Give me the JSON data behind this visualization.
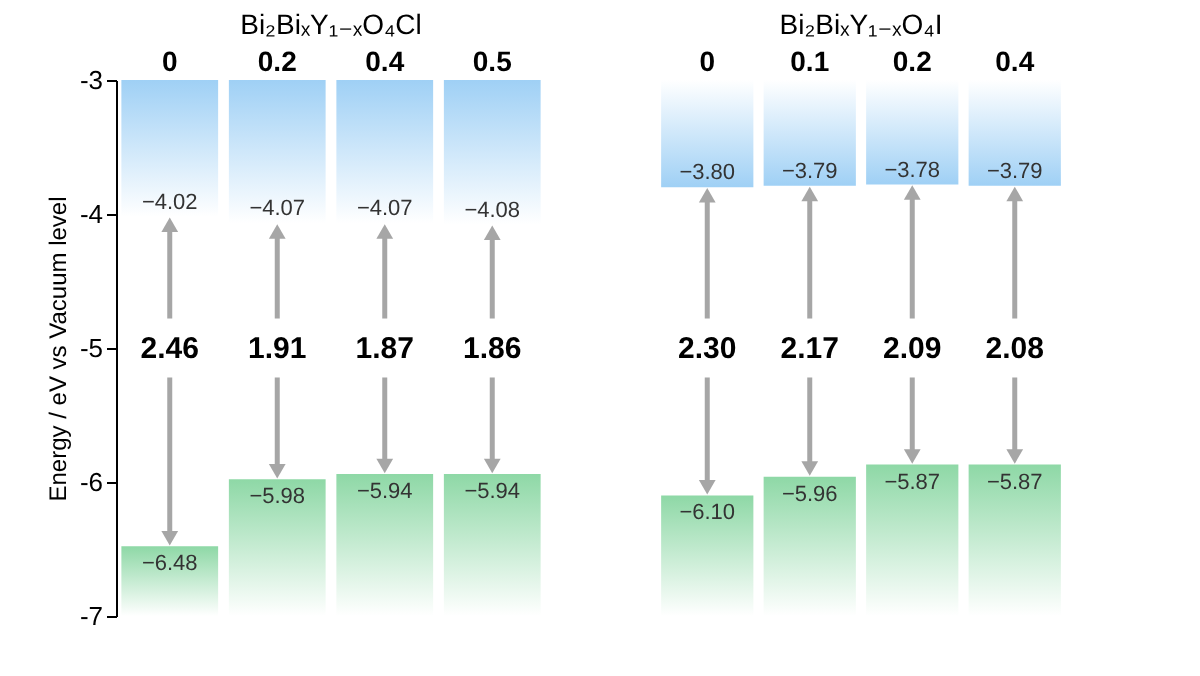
{
  "chart_data": [
    {
      "type": "bar",
      "title": "Bi₂BiₓY₁₋ₓO₄Cl",
      "ylabel": "Energy / eV vs Vacuum level",
      "categories": [
        "0",
        "0.2",
        "0.4",
        "0.5"
      ],
      "ylim": [
        -7,
        -3
      ],
      "yticks": [
        -7,
        -6,
        -5,
        -4,
        -3
      ],
      "series": [
        {
          "color": "#9fd0f5",
          "base": [
            -4.02,
            -4.07,
            -4.07,
            -4.08
          ],
          "values": [
            1.02,
            1.07,
            1.07,
            1.08
          ]
        },
        {
          "color": "#8ed8a6",
          "base": [
            -7,
            -7,
            -7,
            -7
          ],
          "values": [
            0.52,
            1.02,
            1.06,
            1.06
          ]
        }
      ],
      "annotations": [
        {
          "text": "−4.02",
          "x": "0",
          "y": -4.02
        },
        {
          "text": "−4.07",
          "x": "0.2",
          "y": -4.07
        },
        {
          "text": "−4.07",
          "x": "0.4",
          "y": -4.07
        },
        {
          "text": "−4.08",
          "x": "0.5",
          "y": -4.08
        },
        {
          "text": "−6.48",
          "x": "0",
          "y": -6.48
        },
        {
          "text": "−5.98",
          "x": "0.2",
          "y": -5.98
        },
        {
          "text": "−5.94",
          "x": "0.4",
          "y": -5.94
        },
        {
          "text": "−5.94",
          "x": "0.5",
          "y": -5.94
        },
        {
          "text": "2.46",
          "x": "0"
        },
        {
          "text": "1.91",
          "x": "0.2"
        },
        {
          "text": "1.87",
          "x": "0.4"
        },
        {
          "text": "1.86",
          "x": "0.5"
        }
      ]
    },
    {
      "type": "bar",
      "title": "Bi₂BiₓY₁₋ₓO₄I",
      "categories": [
        "0",
        "0.1",
        "0.2",
        "0.4"
      ],
      "ylim": [
        -7,
        -3
      ],
      "tick_labels": "x",
      "series": [
        {
          "color": "#9fd0f5",
          "base": [
            -3.8,
            -3.79,
            -3.78,
            -3.79
          ],
          "values": [
            0.8,
            0.79,
            0.78,
            0.79
          ]
        },
        {
          "color": "#8ed8a6",
          "base": [
            -7,
            -7,
            -7,
            -7
          ],
          "values": [
            0.9,
            1.04,
            1.13,
            1.13
          ]
        }
      ],
      "annotations": [
        {
          "text": "−3.80",
          "x": "0",
          "y": -3.8
        },
        {
          "text": "−3.79",
          "x": "0.1",
          "y": -3.79
        },
        {
          "text": "−3.78",
          "x": "0.2",
          "y": -3.78
        },
        {
          "text": "−3.79",
          "x": "0.4",
          "y": -3.79
        },
        {
          "text": "−6.10",
          "x": "0",
          "y": -6.1
        },
        {
          "text": "−5.96",
          "x": "0.1",
          "y": -5.96
        },
        {
          "text": "−5.87",
          "x": "0.2",
          "y": -5.87
        },
        {
          "text": "−5.87",
          "x": "0.4",
          "y": -5.87
        },
        {
          "text": "2.30",
          "x": "0"
        },
        {
          "text": "2.17",
          "x": "0.1"
        },
        {
          "text": "2.09",
          "x": "0.2"
        },
        {
          "text": "2.08",
          "x": "0.4"
        }
      ]
    }
  ]
}
